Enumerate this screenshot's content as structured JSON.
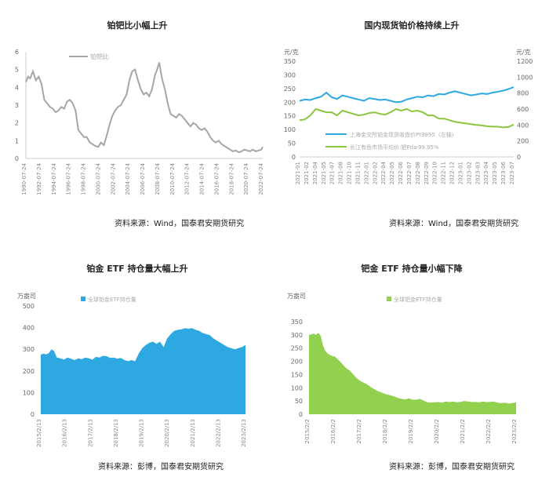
{
  "chart_data": [
    {
      "type": "line",
      "title": "铂钯比小幅上升",
      "source": "资料来源：Wind，国泰君安期货研究",
      "legend": [
        "铂钯比"
      ],
      "ylim": [
        0,
        6
      ],
      "yticks": [
        "0",
        "1",
        "2",
        "3",
        "4",
        "5",
        "6"
      ],
      "xticks": [
        "1990-07-24",
        "1992-07-24",
        "1994-07-24",
        "1996-07-24",
        "1998-07-24",
        "2000-07-24",
        "2002-07-24",
        "2004-07-24",
        "2006-07-24",
        "2008-07-24",
        "2010-07-24",
        "2012-07-24",
        "2014-07-24",
        "2016-07-24",
        "2018-07-24",
        "2020-07-24",
        "2022-07-24"
      ],
      "series": [
        {
          "name": "铂钯比",
          "color": "#a6a6a6",
          "x": [
            1990.0,
            1990.3,
            1990.6,
            1991.0,
            1991.4,
            1991.8,
            1992.2,
            1992.6,
            1993.0,
            1993.4,
            1993.8,
            1994.2,
            1994.6,
            1995.0,
            1995.4,
            1995.8,
            1996.2,
            1996.6,
            1997.0,
            1997.4,
            1997.8,
            1998.2,
            1998.6,
            1999.0,
            1999.4,
            1999.8,
            2000.2,
            2000.6,
            2001.0,
            2001.4,
            2001.8,
            2002.2,
            2002.6,
            2003.0,
            2003.4,
            2003.8,
            2004.2,
            2004.6,
            2005.0,
            2005.4,
            2005.8,
            2006.2,
            2006.6,
            2007.0,
            2007.4,
            2007.8,
            2008.2,
            2008.5,
            2008.8,
            2009.2,
            2009.6,
            2010.0,
            2010.4,
            2010.8,
            2011.2,
            2011.6,
            2012.0,
            2012.4,
            2012.8,
            2013.2,
            2013.6,
            2014.0,
            2014.4,
            2014.8,
            2015.2,
            2015.6,
            2016.0,
            2016.4,
            2016.8,
            2017.2,
            2017.6,
            2018.0,
            2018.4,
            2018.8,
            2019.2,
            2019.6,
            2020.0,
            2020.4,
            2020.8,
            2021.2,
            2021.6,
            2022.0,
            2022.4,
            2022.8,
            2023.2,
            2023.4
          ],
          "y": [
            4.3,
            4.6,
            4.5,
            4.9,
            4.4,
            4.6,
            4.2,
            3.3,
            3.1,
            2.9,
            2.8,
            2.6,
            2.7,
            2.9,
            2.8,
            3.2,
            3.3,
            3.1,
            2.7,
            1.6,
            1.4,
            1.2,
            1.2,
            0.9,
            0.8,
            0.7,
            0.65,
            0.9,
            0.75,
            1.3,
            1.9,
            2.4,
            2.7,
            2.9,
            3.0,
            3.3,
            3.6,
            4.4,
            4.9,
            5.0,
            4.4,
            3.9,
            3.6,
            3.7,
            3.5,
            3.9,
            4.7,
            5.0,
            5.4,
            4.5,
            3.9,
            3.1,
            2.5,
            2.4,
            2.3,
            2.5,
            2.4,
            2.2,
            2.0,
            1.8,
            2.0,
            1.9,
            1.7,
            1.6,
            1.7,
            1.5,
            1.2,
            1.0,
            0.9,
            1.0,
            0.8,
            0.7,
            0.6,
            0.5,
            0.4,
            0.45,
            0.35,
            0.4,
            0.5,
            0.45,
            0.4,
            0.5,
            0.4,
            0.45,
            0.5,
            0.65
          ]
        }
      ]
    },
    {
      "type": "line",
      "title": "国内现货铂价格持续上升",
      "source": "资料来源：Wind，国泰君安期货研究",
      "left_unit": "元/克",
      "right_unit": "元/克",
      "ylim_left": [
        0,
        350
      ],
      "ylim_right": [
        0,
        1200
      ],
      "yticks_left": [
        "0",
        "50",
        "100",
        "150",
        "200",
        "250",
        "300",
        "350"
      ],
      "yticks_right": [
        "0",
        "200",
        "400",
        "600",
        "800",
        "1000",
        "1200"
      ],
      "xticks": [
        "2021-01",
        "2021-02",
        "2021-04",
        "2021-05",
        "2021-07",
        "2021-08",
        "2021-10",
        "2021-11",
        "2022-01",
        "2022-02",
        "2022-04",
        "2022-05",
        "2022-06",
        "2022-07",
        "2022-08",
        "2022-09",
        "2022-10",
        "2022-11",
        "2022-12",
        "2023-01",
        "2023-02",
        "2023-03",
        "2023-04",
        "2023-05",
        "2023-06",
        "2023-07"
      ],
      "legend": [
        "上海金交所铂金现货收盘价Pt9995（左轴）",
        "长江有色市场平均价:钯Pd≥99.95%"
      ],
      "series": [
        {
          "name": "上海金交所铂金现货收盘价Pt9995（左轴）",
          "color": "#2ea8e0",
          "axis": "left",
          "x": [
            0,
            1,
            2,
            3,
            4,
            5,
            6,
            7,
            8,
            9,
            10,
            11,
            12,
            13,
            14,
            15,
            16,
            17,
            18,
            19,
            20,
            21,
            22,
            23,
            24,
            25,
            26,
            27,
            28,
            29,
            30,
            31,
            32,
            33,
            34,
            35,
            36,
            37,
            38,
            39,
            40
          ],
          "y": [
            205,
            210,
            208,
            215,
            220,
            235,
            218,
            212,
            225,
            220,
            215,
            210,
            205,
            215,
            212,
            208,
            210,
            205,
            200,
            202,
            210,
            215,
            220,
            218,
            225,
            222,
            230,
            228,
            235,
            240,
            235,
            230,
            225,
            228,
            232,
            230,
            235,
            238,
            242,
            248,
            255
          ]
        },
        {
          "name": "长江有色市场平均价:钯Pd≥99.95%",
          "color": "#8cc63f",
          "axis": "right",
          "x": [
            0,
            1,
            2,
            3,
            4,
            5,
            6,
            7,
            8,
            9,
            10,
            11,
            12,
            13,
            14,
            15,
            16,
            17,
            18,
            19,
            20,
            21,
            22,
            23,
            24,
            25,
            26,
            27,
            28,
            29,
            30,
            31,
            32,
            33,
            34,
            35,
            36,
            37,
            38,
            39,
            40
          ],
          "y": [
            460,
            470,
            520,
            600,
            580,
            560,
            560,
            520,
            580,
            560,
            540,
            520,
            530,
            550,
            560,
            540,
            530,
            560,
            600,
            580,
            600,
            570,
            580,
            560,
            520,
            520,
            480,
            480,
            460,
            440,
            430,
            420,
            410,
            400,
            395,
            385,
            380,
            380,
            370,
            375,
            405
          ]
        }
      ]
    },
    {
      "type": "area",
      "title": "铂金 ETF 持仓量大幅上升",
      "source": "资料来源：彭博，国泰君安期货研究",
      "unit": "万盎司",
      "legend": [
        "全球铂金ETF持仓量"
      ],
      "ylim": [
        0,
        500
      ],
      "yticks": [
        "0",
        "100",
        "200",
        "300",
        "400",
        "500"
      ],
      "xticks": [
        "2015/2/13",
        "2016/2/13",
        "2017/2/13",
        "2018/2/13",
        "2019/2/13",
        "2020/2/13",
        "2021/2/13",
        "2022/2/13",
        "2023/2/13"
      ],
      "series": [
        {
          "name": "全球铂金ETF持仓量",
          "color": "#2ea8e0",
          "x": [
            0,
            0.3,
            0.6,
            0.9,
            1.2,
            1.5,
            1.8,
            2.2,
            2.6,
            3.0,
            3.4,
            3.8,
            4.2,
            4.6,
            5.0,
            5.4,
            5.8,
            6.2,
            6.6,
            7.0,
            7.4,
            7.8,
            8.2,
            8.6,
            9.0,
            9.4,
            9.8,
            10.2,
            10.6,
            11.0,
            11.4,
            11.8,
            12.2,
            12.6,
            13.0,
            13.4,
            13.8,
            14.2,
            14.6,
            15.0,
            15.4,
            15.8,
            16.2,
            16.6,
            17.0,
            17.4,
            17.8,
            18.2,
            18.6,
            19.0,
            19.4,
            19.8,
            20.2,
            20.6,
            21.0,
            21.4,
            21.8,
            22.2,
            22.6,
            23.0
          ],
          "y": [
            275,
            280,
            276,
            282,
            300,
            292,
            262,
            258,
            252,
            262,
            256,
            250,
            258,
            254,
            262,
            258,
            252,
            265,
            262,
            270,
            268,
            260,
            262,
            256,
            260,
            250,
            245,
            250,
            245,
            280,
            305,
            320,
            330,
            335,
            325,
            335,
            310,
            350,
            370,
            385,
            390,
            392,
            398,
            395,
            398,
            390,
            385,
            375,
            370,
            365,
            350,
            340,
            330,
            320,
            310,
            305,
            300,
            305,
            310,
            320
          ]
        }
      ]
    },
    {
      "type": "area",
      "title": "钯金 ETF 持仓量小幅下降",
      "source": "资料来源：彭博，国泰君安期货研究",
      "unit": "万盎司",
      "legend": [
        "全球钯金ETF持仓量"
      ],
      "ylim": [
        0,
        350
      ],
      "yticks": [
        "0",
        "50",
        "100",
        "150",
        "200",
        "250",
        "300",
        "350"
      ],
      "xticks": [
        "2015/2/2",
        "2016/2/2",
        "2017/2/2",
        "2018/2/2",
        "2019/2/2",
        "2020/2/2",
        "2021/2/2",
        "2022/2/2",
        "2023/2/2"
      ],
      "series": [
        {
          "name": "全球钯金ETF持仓量",
          "color": "#92d050",
          "x": [
            0,
            0.25,
            0.5,
            0.75,
            1.0,
            1.25,
            1.5,
            1.75,
            2.0,
            2.4,
            2.8,
            3.2,
            3.6,
            4.0,
            4.4,
            4.8,
            5.2,
            5.6,
            6.0,
            6.4,
            6.8,
            7.2,
            7.6,
            8.0,
            8.4,
            8.8,
            9.2,
            9.6,
            10.0,
            10.4,
            10.8,
            11.2,
            11.6,
            12.0,
            12.4,
            12.8,
            13.2,
            13.6,
            14.0,
            14.4,
            14.8,
            15.2,
            15.6,
            16.0,
            16.4,
            16.8,
            17.2,
            17.6,
            18.0,
            18.4,
            18.8,
            19.2,
            19.6,
            20.0,
            20.4,
            20.8,
            21.2,
            21.6,
            22.0,
            22.4
          ],
          "y": [
            300,
            302,
            305,
            300,
            308,
            298,
            262,
            240,
            230,
            222,
            218,
            205,
            190,
            175,
            165,
            150,
            135,
            125,
            118,
            110,
            100,
            92,
            85,
            80,
            75,
            72,
            68,
            62,
            58,
            56,
            60,
            55,
            55,
            58,
            52,
            45,
            44,
            45,
            46,
            44,
            48,
            46,
            48,
            45,
            47,
            50,
            48,
            46,
            47,
            45,
            48,
            46,
            47,
            48,
            44,
            42,
            44,
            40,
            42,
            45
          ]
        }
      ]
    }
  ]
}
